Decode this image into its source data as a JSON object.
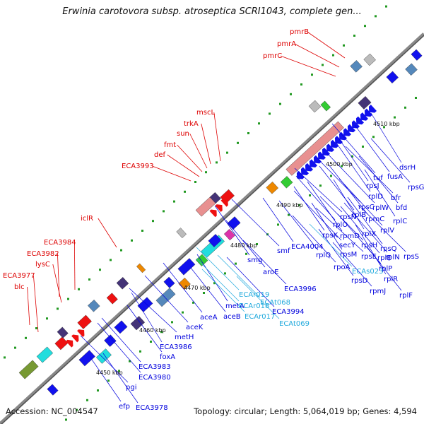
{
  "title": "Erwinia carotovora subsp. atroseptica SCRI1043, complete gen...",
  "footer": {
    "accession": "Accession: NC_004547",
    "summary": "Topology: circular; Length: 5,064,019 bp; Genes: 4,594"
  },
  "colors": {
    "backbone": "#888888",
    "forward_label": "#dd0000",
    "reverse_label": "#0000dd",
    "rna_label": "#22aadd",
    "tick": "#229922",
    "cds_blue": "#1111ee",
    "cds_red": "#ee1111",
    "rna_pink": "#e89090",
    "cyan": "#22dddd",
    "steelblue": "#5588bb",
    "purple": "#443377",
    "olive": "#779933",
    "green": "#33cc33",
    "orange": "#ee8800",
    "grey": "#bbbbbb",
    "magenta": "#dd33aa"
  },
  "scale_labels": [
    "4450 kbp",
    "4460 kbp",
    "4470 kbp",
    "4480 kbp",
    "4490 kbp",
    "4500 kbp",
    "4510 kbp"
  ],
  "forward_gene_labels": [
    "pmrB",
    "pmrA",
    "pmrC",
    "mscL",
    "trkA",
    "sun",
    "fmt",
    "def",
    "ECA3993",
    "iclR",
    "ECA3984",
    "ECA3982",
    "lysC",
    "ECA3977",
    "blc"
  ],
  "reverse_gene_labels": [
    "dsrH",
    "fusA",
    "rpsG",
    "tuf",
    "bfr",
    "rpsJ",
    "rplD",
    "bfd",
    "rpsC",
    "rplW",
    "rplC",
    "rplB",
    "rpmC",
    "rplV",
    "rpsN",
    "rplX",
    "rpsQ",
    "rplO",
    "rplN",
    "rpsS",
    "rpsK",
    "rpmD",
    "rplE",
    "rpsH",
    "secY",
    "rpsM",
    "rplF",
    "rplQ",
    "rpoA",
    "rpsE",
    "rplR",
    "rpsD",
    "rpmJ",
    "rplP",
    "smf",
    "ECA4004",
    "smg",
    "aroE",
    "ECA3996",
    "ECA3994",
    "metA",
    "aceB",
    "aceA",
    "aceK",
    "metH",
    "ECA3986",
    "foxA",
    "ECA3983",
    "ECA3980",
    "pgi",
    "efp",
    "ECA3978"
  ],
  "rna_gene_labels": [
    "ECAs023",
    "ECAr019",
    "ECAr018",
    "ECAt068",
    "ECAr017",
    "ECAt069"
  ]
}
